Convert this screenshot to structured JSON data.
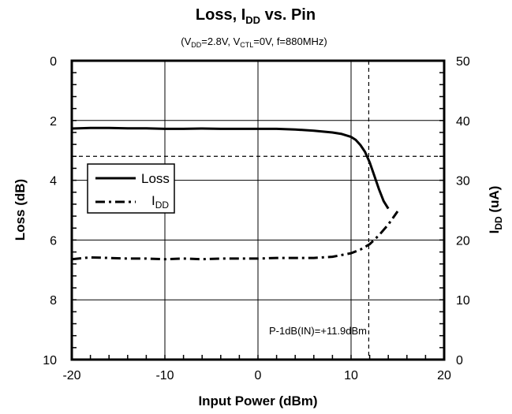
{
  "chart_data": {
    "type": "line",
    "title": "Loss, IDD vs. Pin",
    "title_parts": [
      "Loss, I",
      "DD",
      " vs. Pin"
    ],
    "subtitle_parts": [
      "(V",
      "DD",
      "=2.8V, V",
      "CTL",
      "=0V, f=880MHz)"
    ],
    "xlabel": "Input Power (dBm)",
    "ylabel_left": "Loss (dB)",
    "ylabel_right_parts": [
      "I",
      "DD",
      " (uA)"
    ],
    "xlim": [
      -20,
      20
    ],
    "ylim_left": [
      10,
      0
    ],
    "ylim_right": [
      0,
      50
    ],
    "x_ticks": [
      "-20",
      "-10",
      "0",
      "10",
      "20"
    ],
    "y_left_ticks": [
      "0",
      "2",
      "4",
      "6",
      "8",
      "10"
    ],
    "y_right_ticks": [
      "50",
      "40",
      "30",
      "20",
      "10",
      "0"
    ],
    "grid": true,
    "legend_position": "left",
    "series": [
      {
        "name": "Loss",
        "axis": "left",
        "style": "solid",
        "x": [
          -20,
          -18,
          -16,
          -14,
          -12,
          -10,
          -8,
          -6,
          -4,
          -2,
          0,
          2,
          4,
          6,
          8,
          9,
          10,
          10.5,
          11,
          11.5,
          12,
          12.5,
          13,
          13.5,
          14
        ],
        "y": [
          2.27,
          2.25,
          2.25,
          2.26,
          2.26,
          2.28,
          2.28,
          2.27,
          2.28,
          2.28,
          2.28,
          2.28,
          2.3,
          2.34,
          2.4,
          2.45,
          2.55,
          2.65,
          2.82,
          3.05,
          3.4,
          3.85,
          4.3,
          4.7,
          4.95
        ]
      },
      {
        "name": "IDD",
        "legend_parts": [
          "I",
          "DD"
        ],
        "axis": "right",
        "style": "dash-dot",
        "x": [
          -20,
          -18,
          -16,
          -14,
          -12,
          -10,
          -8,
          -6,
          -4,
          -2,
          0,
          2,
          4,
          6,
          8,
          9,
          10,
          11,
          12,
          13,
          14,
          15
        ],
        "y": [
          16.8,
          17.1,
          17.0,
          16.9,
          16.9,
          16.8,
          16.9,
          16.8,
          16.9,
          16.9,
          16.9,
          17.0,
          17.0,
          17.0,
          17.2,
          17.5,
          17.8,
          18.4,
          19.3,
          20.8,
          22.6,
          24.8
        ]
      }
    ],
    "reference_lines": {
      "x": 11.9,
      "y_left": 3.2
    },
    "annotation": "P-1dB(IN)=+11.9dBm"
  },
  "colors": {
    "background": "#ffffff",
    "foreground": "#000000"
  }
}
